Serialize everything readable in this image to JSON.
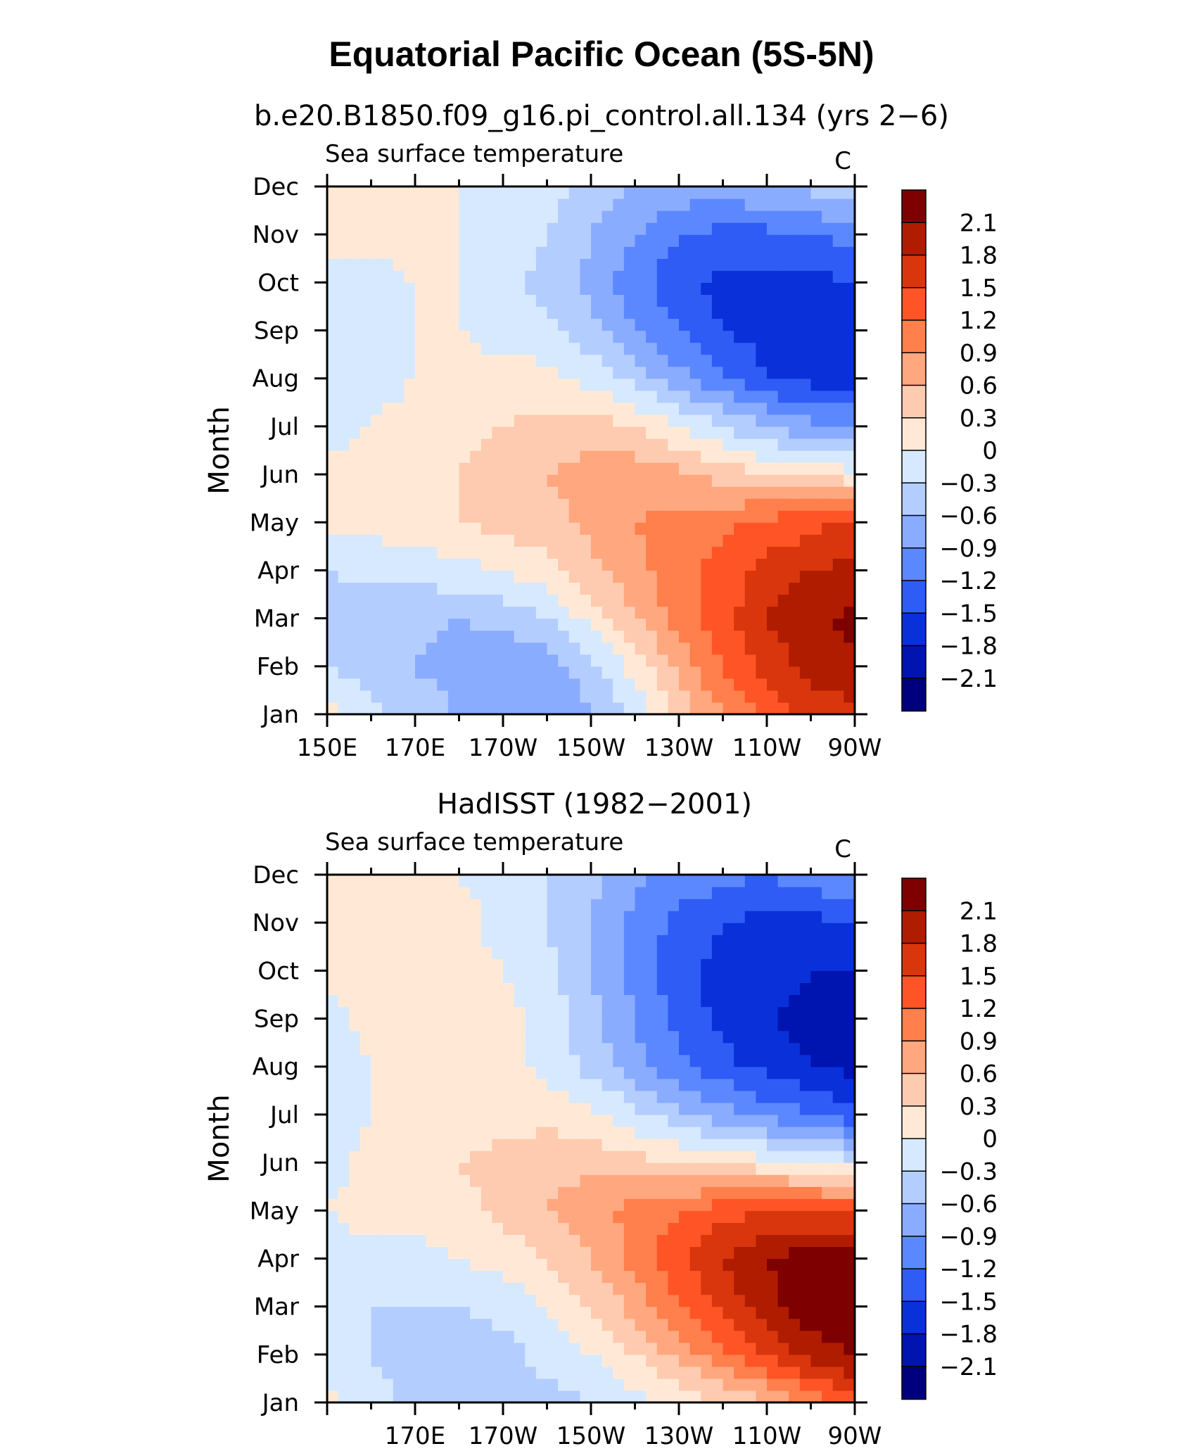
{
  "figure": {
    "title": "Equatorial Pacific Ocean (5S-5N)"
  },
  "colorbar": {
    "levels": [
      "2.1",
      "1.8",
      "1.5",
      "1.2",
      "0.9",
      "0.6",
      "0.3",
      "0",
      "−0.3",
      "−0.6",
      "−0.9",
      "−1.2",
      "−1.5",
      "−1.8",
      "−2.1"
    ],
    "colors": [
      "#7f0000",
      "#b01c00",
      "#d9360d",
      "#ff5526",
      "#ff7f4d",
      "#ffa87f",
      "#ffcbb0",
      "#ffe9d6",
      "#d6e9ff",
      "#b4cdff",
      "#8aacff",
      "#5c88ff",
      "#2e5cf5",
      "#0a30d9",
      "#0014b0",
      "#00007f"
    ]
  },
  "chart_data": [
    {
      "type": "heatmap",
      "subtitle": "b.e20.B1850.f09_g16.pi_control.all.134 (yrs 2−6)",
      "variable": "Sea surface temperature",
      "units": "C",
      "ylabel": "Month",
      "xlabel": "",
      "y_ticks": [
        "Jan",
        "Feb",
        "Mar",
        "Apr",
        "May",
        "Jun",
        "Jul",
        "Aug",
        "Sep",
        "Oct",
        "Nov",
        "Dec"
      ],
      "x_ticks": [
        "150E",
        "170E",
        "170W",
        "150W",
        "130W",
        "110W",
        "90W"
      ],
      "x_range": [
        "150E",
        "90W"
      ],
      "y_range": [
        "Jan",
        "Dec"
      ],
      "contour_levels": [
        -2.1,
        -1.8,
        -1.5,
        -1.2,
        -0.9,
        -0.6,
        -0.3,
        0,
        0.3,
        0.6,
        0.9,
        1.2,
        1.5,
        1.8,
        2.1
      ],
      "lon": [
        150,
        160,
        170,
        180,
        190,
        200,
        210,
        220,
        230,
        240,
        250,
        260,
        270
      ],
      "month": [
        "Jan",
        "Feb",
        "Mar",
        "Apr",
        "May",
        "Jun",
        "Jul",
        "Aug",
        "Sep",
        "Oct",
        "Nov",
        "Dec"
      ],
      "values": [
        [
          0.1,
          -0.2,
          -0.4,
          -0.6,
          -0.8,
          -0.9,
          -0.6,
          -0.2,
          0.4,
          0.9,
          1.3,
          1.6,
          1.7
        ],
        [
          -0.3,
          -0.5,
          -0.6,
          -0.8,
          -0.9,
          -0.8,
          -0.4,
          0.1,
          0.7,
          1.2,
          1.6,
          1.9,
          2.0
        ],
        [
          -0.4,
          -0.5,
          -0.5,
          -0.6,
          -0.5,
          -0.3,
          0.1,
          0.6,
          1.0,
          1.4,
          1.8,
          2.0,
          2.2
        ],
        [
          -0.3,
          -0.2,
          -0.2,
          -0.1,
          0.0,
          0.2,
          0.5,
          0.8,
          1.1,
          1.3,
          1.6,
          1.8,
          1.9
        ],
        [
          0.1,
          0.1,
          0.2,
          0.3,
          0.4,
          0.5,
          0.7,
          0.9,
          1.0,
          1.1,
          1.3,
          1.4,
          1.6
        ],
        [
          0.1,
          0.1,
          0.2,
          0.3,
          0.4,
          0.6,
          0.7,
          0.8,
          0.7,
          0.5,
          0.3,
          0.2,
          0.1
        ],
        [
          -0.1,
          0.0,
          0.1,
          0.2,
          0.3,
          0.4,
          0.5,
          0.3,
          0.0,
          -0.3,
          -0.6,
          -0.8,
          -0.9
        ],
        [
          -0.2,
          -0.1,
          0.0,
          0.1,
          0.1,
          0.1,
          -0.1,
          -0.4,
          -0.8,
          -1.2,
          -1.5,
          -1.6,
          -1.6
        ],
        [
          -0.2,
          -0.1,
          0.0,
          0.0,
          -0.1,
          -0.2,
          -0.5,
          -0.9,
          -1.2,
          -1.5,
          -1.6,
          -1.7,
          -1.8
        ],
        [
          -0.1,
          -0.1,
          0.0,
          0.0,
          -0.2,
          -0.4,
          -0.7,
          -1.1,
          -1.4,
          -1.6,
          -1.6,
          -1.6,
          -1.5
        ],
        [
          0.1,
          0.1,
          0.1,
          0.0,
          -0.1,
          -0.3,
          -0.6,
          -0.9,
          -1.2,
          -1.3,
          -1.3,
          -1.2,
          -1.1
        ],
        [
          0.1,
          0.1,
          0.1,
          0.0,
          0.0,
          -0.2,
          -0.4,
          -0.6,
          -0.7,
          -0.7,
          -0.6,
          -0.5,
          -0.4
        ]
      ]
    },
    {
      "type": "heatmap",
      "subtitle": "HadISST (1982−2001)",
      "variable": "Sea surface temperature",
      "units": "C",
      "ylabel": "Month",
      "xlabel": "",
      "y_ticks": [
        "Jan",
        "Feb",
        "Mar",
        "Apr",
        "May",
        "Jun",
        "Jul",
        "Aug",
        "Sep",
        "Oct",
        "Nov",
        "Dec"
      ],
      "x_ticks": [
        "170E",
        "170W",
        "150W",
        "130W",
        "110W",
        "90W"
      ],
      "x_range": [
        "150E",
        "90W"
      ],
      "y_range": [
        "Jan",
        "Dec"
      ],
      "contour_levels": [
        -2.1,
        -1.8,
        -1.5,
        -1.2,
        -0.9,
        -0.6,
        -0.3,
        0,
        0.3,
        0.6,
        0.9,
        1.2,
        1.5,
        1.8,
        2.1
      ],
      "lon": [
        150,
        160,
        170,
        180,
        190,
        200,
        210,
        220,
        230,
        240,
        250,
        260,
        270
      ],
      "month": [
        "Jan",
        "Feb",
        "Mar",
        "Apr",
        "May",
        "Jun",
        "Jul",
        "Aug",
        "Sep",
        "Oct",
        "Nov",
        "Dec"
      ],
      "values": [
        [
          0.1,
          -0.2,
          -0.4,
          -0.5,
          -0.5,
          -0.4,
          -0.3,
          -0.1,
          0.1,
          0.3,
          0.6,
          1.0,
          1.4
        ],
        [
          -0.2,
          -0.3,
          -0.4,
          -0.5,
          -0.4,
          -0.2,
          0.0,
          0.3,
          0.7,
          1.1,
          1.5,
          1.9,
          2.1
        ],
        [
          -0.2,
          -0.3,
          -0.3,
          -0.3,
          -0.2,
          0.0,
          0.3,
          0.7,
          1.2,
          1.6,
          2.0,
          2.3,
          2.4
        ],
        [
          -0.1,
          -0.1,
          -0.1,
          0.0,
          0.1,
          0.3,
          0.6,
          1.0,
          1.4,
          1.8,
          2.1,
          2.3,
          2.2
        ],
        [
          0.0,
          0.1,
          0.1,
          0.2,
          0.4,
          0.6,
          0.8,
          1.0,
          1.2,
          1.4,
          1.5,
          1.5,
          1.4
        ],
        [
          -0.1,
          0.1,
          0.2,
          0.3,
          0.4,
          0.5,
          0.5,
          0.4,
          0.3,
          0.2,
          0.1,
          0.0,
          -0.2
        ],
        [
          -0.2,
          0.0,
          0.1,
          0.1,
          0.2,
          0.2,
          0.1,
          -0.2,
          -0.5,
          -0.8,
          -1.0,
          -1.2,
          -1.4
        ],
        [
          -0.2,
          0.0,
          0.1,
          0.1,
          0.1,
          -0.1,
          -0.4,
          -0.8,
          -1.1,
          -1.4,
          -1.6,
          -1.8,
          -1.9
        ],
        [
          -0.1,
          0.1,
          0.3,
          0.2,
          0.1,
          -0.1,
          -0.5,
          -0.9,
          -1.3,
          -1.6,
          -1.8,
          -1.9,
          -1.9
        ],
        [
          0.1,
          0.1,
          0.2,
          0.1,
          0.0,
          -0.2,
          -0.6,
          -1.0,
          -1.4,
          -1.6,
          -1.7,
          -1.8,
          -1.8
        ],
        [
          0.1,
          0.1,
          0.1,
          0.1,
          -0.1,
          -0.3,
          -0.6,
          -1.0,
          -1.3,
          -1.5,
          -1.6,
          -1.6,
          -1.5
        ],
        [
          0.1,
          0.1,
          0.1,
          0.0,
          -0.1,
          -0.3,
          -0.5,
          -0.8,
          -1.0,
          -1.1,
          -1.2,
          -1.0,
          -0.8
        ]
      ]
    }
  ]
}
